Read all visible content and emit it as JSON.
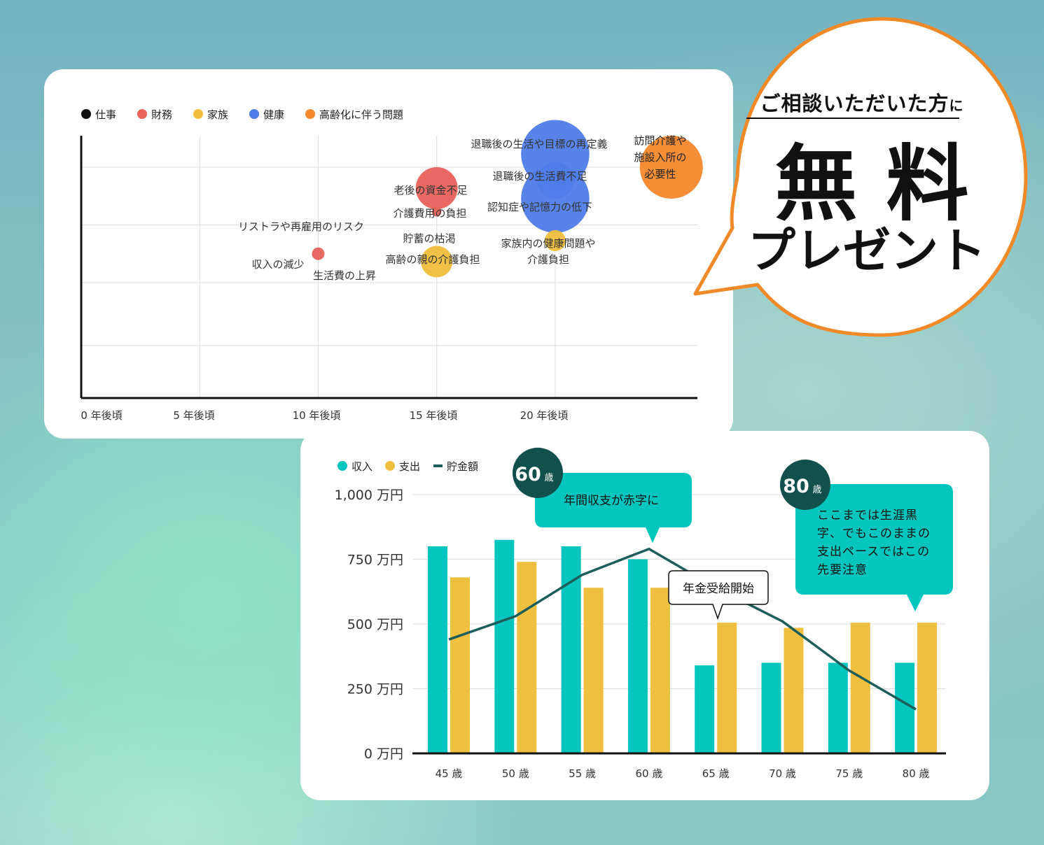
{
  "colors": {
    "job": "#111111",
    "finance": "#e8615a",
    "family": "#f0bd3c",
    "health": "#4f7de8",
    "aging": "#f4882c",
    "income": "#04c6bf",
    "expense": "#efbf40",
    "savings": "#1e5e5a",
    "badge": "#11504c",
    "bubble_border": "#f08a28"
  },
  "chart_data": [
    {
      "type": "scatter",
      "legend": [
        {
          "label": "仕事",
          "color_key": "job"
        },
        {
          "label": "財務",
          "color_key": "finance"
        },
        {
          "label": "家族",
          "color_key": "family"
        },
        {
          "label": "健康",
          "color_key": "health"
        },
        {
          "label": "高齢化に伴う問題",
          "color_key": "aging"
        }
      ],
      "legend_position": "top-left",
      "x_ticks": [
        {
          "label": "0 年後頃",
          "value": 0
        },
        {
          "label": "5 年後頃",
          "value": 5
        },
        {
          "label": "10 年後頃",
          "value": 10
        },
        {
          "label": "15 年後頃",
          "value": 15
        },
        {
          "label": "20 年後頃",
          "value": 20
        }
      ],
      "xlim": [
        0,
        26
      ],
      "ylim": [
        0,
        100
      ],
      "grid": true,
      "points": [
        {
          "x": 10,
          "y": 55,
          "r": 1.2,
          "category": "finance",
          "label": "収入の減少"
        },
        {
          "x": 15,
          "y": 80,
          "r": 4.0,
          "category": "finance",
          "label": "老後の資金不足"
        },
        {
          "x": 15,
          "y": 71,
          "r": 0.9,
          "category": "finance",
          "label": "介護費用の負担"
        },
        {
          "x": 15,
          "y": 52,
          "r": 3.0,
          "category": "family",
          "label": "高齢の親の介護負担"
        },
        {
          "x": 20,
          "y": 93,
          "r": 6.5,
          "category": "health",
          "label": "退職後の生活や目標の再定義"
        },
        {
          "x": 20,
          "y": 83,
          "r": 3.5,
          "category": "health",
          "label": "退職後の生活費不足"
        },
        {
          "x": 20,
          "y": 76,
          "r": 6.5,
          "category": "health",
          "label": "認知症や記憶力の低下"
        },
        {
          "x": 20,
          "y": 60,
          "r": 2.0,
          "category": "family",
          "label": "家族内の健康問題や介護負担"
        },
        {
          "x": 24.9,
          "y": 88,
          "r": 6.0,
          "category": "aging",
          "label": "訪問介護や施設入所の必要性"
        }
      ],
      "free_labels": [
        "リストラや再雇用のリスク",
        "生活費の上昇",
        "貯蓄の枯渇"
      ]
    },
    {
      "type": "bar",
      "legend": [
        {
          "label": "収入",
          "color_key": "income"
        },
        {
          "label": "支出",
          "color_key": "expense"
        },
        {
          "label": "貯金額",
          "color_key": "savings"
        }
      ],
      "legend_position": "top-left",
      "categories": [
        "45 歳",
        "50 歳",
        "55 歳",
        "60 歳",
        "65 歳",
        "70 歳",
        "75 歳",
        "80 歳"
      ],
      "y_ticks": [
        {
          "label": "0 万円",
          "value": 0
        },
        {
          "label": "250 万円",
          "value": 250
        },
        {
          "label": "500 万円",
          "value": 500
        },
        {
          "label": "750 万円",
          "value": 750
        },
        {
          "label": "1,000 万円",
          "value": 1000
        }
      ],
      "ylim": [
        0,
        1000
      ],
      "grid": true,
      "series": [
        {
          "name": "収入",
          "kind": "bar",
          "color_key": "income",
          "values": [
            800,
            825,
            800,
            750,
            340,
            350,
            350,
            350
          ]
        },
        {
          "name": "支出",
          "kind": "bar",
          "color_key": "expense",
          "values": [
            680,
            740,
            640,
            640,
            505,
            485,
            505,
            505
          ]
        },
        {
          "name": "貯金額",
          "kind": "line",
          "color_key": "savings",
          "values": [
            440,
            530,
            690,
            790,
            640,
            510,
            320,
            170
          ]
        }
      ],
      "annotations": [
        {
          "badge_num": "60",
          "badge_unit": "歳",
          "text": [
            "年間収支が赤字に"
          ]
        },
        {
          "badge_num": "80",
          "badge_unit": "歳",
          "text": [
            "ここまでは生涯黒",
            "字、でもこのままの",
            "支出ペースではこの",
            "先要注意"
          ]
        },
        {
          "text": [
            "年金受給開始"
          ]
        }
      ]
    }
  ],
  "promo": {
    "line1": "ご相談いただいた方",
    "line1_suffix": "に",
    "line2": "無 料",
    "line3": "プレゼント"
  }
}
